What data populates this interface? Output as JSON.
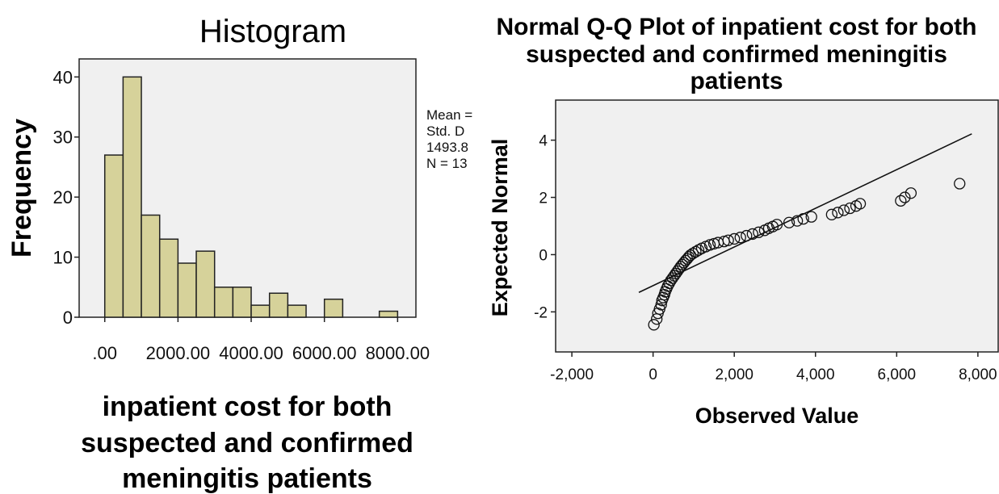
{
  "chart_data": [
    {
      "type": "bar",
      "title": "Histogram",
      "xlabel_lines": [
        "inpatient cost for both",
        "suspected and confirmed",
        "meningitis patients"
      ],
      "ylabel": "Frequency",
      "bar_color": "#d6d29a",
      "plot_bg": "#f0f0f0",
      "bin_width": 500,
      "bin_starts": [
        0,
        500,
        1000,
        1500,
        2000,
        2500,
        3000,
        3500,
        4000,
        4500,
        5000,
        5500,
        6000,
        6500,
        7000,
        7500
      ],
      "values": [
        27,
        40,
        17,
        13,
        9,
        11,
        5,
        5,
        2,
        4,
        2,
        0,
        3,
        0,
        0,
        1
      ],
      "xlim": [
        -700,
        8500
      ],
      "ylim": [
        0,
        43
      ],
      "xticks": [
        0,
        2000,
        4000,
        6000,
        8000
      ],
      "xtick_labels": [
        ".00",
        "2000.00",
        "4000.00",
        "6000.00",
        "8000.00"
      ],
      "yticks": [
        0,
        10,
        20,
        30,
        40
      ],
      "ytick_labels": [
        "0",
        "10",
        "20",
        "30",
        "40"
      ],
      "stats_lines": [
        "Mean =",
        "Std. D",
        "1493.8",
        "N = 13"
      ]
    },
    {
      "type": "scatter",
      "title_lines": [
        "Normal Q-Q Plot of inpatient cost for both",
        "suspected and confirmed meningitis",
        "patients"
      ],
      "xlabel": "Observed Value",
      "ylabel": "Expected Normal",
      "plot_bg": "#f0f0f0",
      "xlim": [
        -2400,
        8500
      ],
      "ylim": [
        -3.4,
        5.4
      ],
      "xticks": [
        -2000,
        0,
        2000,
        4000,
        6000,
        8000
      ],
      "xtick_labels": [
        "-2,000",
        "0",
        "2,000",
        "4,000",
        "6,000",
        "8,000"
      ],
      "yticks": [
        -2,
        0,
        2,
        4
      ],
      "ytick_labels": [
        "-2",
        "0",
        "2",
        "4"
      ],
      "reference_line": [
        [
          -350,
          -1.32
        ],
        [
          7850,
          4.22
        ]
      ],
      "points": [
        [
          20,
          -2.45
        ],
        [
          90,
          -2.25
        ],
        [
          120,
          -2.05
        ],
        [
          160,
          -1.9
        ],
        [
          200,
          -1.75
        ],
        [
          220,
          -1.6
        ],
        [
          250,
          -1.5
        ],
        [
          280,
          -1.4
        ],
        [
          300,
          -1.3
        ],
        [
          330,
          -1.2
        ],
        [
          360,
          -1.1
        ],
        [
          400,
          -1.0
        ],
        [
          440,
          -0.9
        ],
        [
          480,
          -0.82
        ],
        [
          520,
          -0.74
        ],
        [
          560,
          -0.66
        ],
        [
          600,
          -0.58
        ],
        [
          640,
          -0.5
        ],
        [
          680,
          -0.42
        ],
        [
          720,
          -0.35
        ],
        [
          760,
          -0.28
        ],
        [
          800,
          -0.21
        ],
        [
          840,
          -0.15
        ],
        [
          880,
          -0.08
        ],
        [
          920,
          -0.02
        ],
        [
          980,
          0.04
        ],
        [
          1050,
          0.1
        ],
        [
          1120,
          0.16
        ],
        [
          1200,
          0.22
        ],
        [
          1300,
          0.28
        ],
        [
          1400,
          0.34
        ],
        [
          1500,
          0.38
        ],
        [
          1600,
          0.42
        ],
        [
          1750,
          0.46
        ],
        [
          1850,
          0.5
        ],
        [
          2000,
          0.55
        ],
        [
          2150,
          0.6
        ],
        [
          2300,
          0.66
        ],
        [
          2450,
          0.72
        ],
        [
          2600,
          0.78
        ],
        [
          2750,
          0.85
        ],
        [
          2850,
          0.92
        ],
        [
          2950,
          0.98
        ],
        [
          3050,
          1.05
        ],
        [
          3350,
          1.12
        ],
        [
          3550,
          1.18
        ],
        [
          3700,
          1.25
        ],
        [
          3900,
          1.32
        ],
        [
          4400,
          1.4
        ],
        [
          4550,
          1.47
        ],
        [
          4700,
          1.55
        ],
        [
          4850,
          1.62
        ],
        [
          5000,
          1.7
        ],
        [
          5100,
          1.78
        ],
        [
          6100,
          1.88
        ],
        [
          6200,
          2.0
        ],
        [
          6350,
          2.15
        ],
        [
          7550,
          2.48
        ]
      ]
    }
  ]
}
